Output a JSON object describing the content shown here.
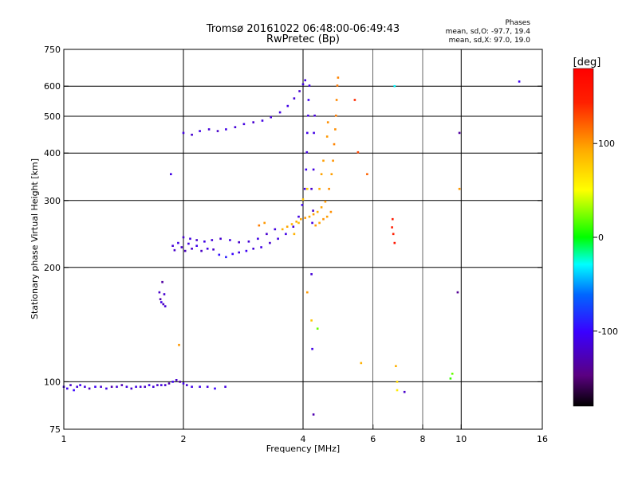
{
  "header": {
    "title_line1": "Tromsø 20161022 06:48:00-06:49:43",
    "title_line2": "RwPretec (Bp)",
    "phase_title": "Phases",
    "phase_o": "mean, sd,O:  -97.7,  19.4",
    "phase_x": "mean, sd,X:   97.0,  19.0"
  },
  "chart_data": {
    "type": "scatter",
    "xlabel": "Frequency [MHz]",
    "ylabel": "Stationary phase Virtual Height [km]",
    "xscale": "log",
    "yscale": "log",
    "xlim": [
      1,
      16
    ],
    "ylim": [
      75,
      750
    ],
    "x_ticks": [
      1,
      2,
      4,
      6,
      8,
      10,
      16
    ],
    "x_tick_labels": [
      "1",
      "2",
      "4",
      "6",
      "8",
      "10",
      "16"
    ],
    "x_major_grid": [
      2,
      4,
      10
    ],
    "x_minor_grid": [
      6,
      8
    ],
    "y_ticks": [
      75,
      100,
      200,
      300,
      400,
      500,
      600,
      750
    ],
    "y_tick_labels": [
      "75",
      "100",
      "200",
      "300",
      "400",
      "500",
      "600",
      "750"
    ],
    "y_grid": [
      100,
      200,
      300,
      400,
      500,
      600
    ],
    "grid": true,
    "colorbar": {
      "label": "[deg]",
      "min": -180,
      "max": 180,
      "ticks": [
        100,
        0,
        -100
      ],
      "tick_labels": [
        "100",
        "0",
        "-100"
      ]
    },
    "series": [
      {
        "mode": "O",
        "points": [
          [
            1.0,
            97,
            -110
          ],
          [
            1.02,
            96,
            -105
          ],
          [
            1.04,
            98,
            -120
          ],
          [
            1.06,
            95,
            -100
          ],
          [
            1.08,
            97,
            -115
          ],
          [
            1.1,
            98,
            -108
          ],
          [
            1.13,
            97,
            -112
          ],
          [
            1.16,
            96,
            -125
          ],
          [
            1.2,
            97,
            -104
          ],
          [
            1.24,
            97,
            -118
          ],
          [
            1.28,
            96,
            -110
          ],
          [
            1.32,
            97,
            -130
          ],
          [
            1.36,
            97,
            -115
          ],
          [
            1.4,
            98,
            -128
          ],
          [
            1.44,
            97,
            -112
          ],
          [
            1.48,
            96,
            -120
          ],
          [
            1.52,
            97,
            -110
          ],
          [
            1.56,
            97,
            -116
          ],
          [
            1.6,
            97,
            -122
          ],
          [
            1.64,
            98,
            -108
          ],
          [
            1.68,
            97,
            -115
          ],
          [
            1.72,
            98,
            -120
          ],
          [
            1.76,
            98,
            -112
          ],
          [
            1.8,
            98,
            -118
          ],
          [
            1.84,
            99,
            -130
          ],
          [
            1.88,
            100,
            -105
          ],
          [
            1.92,
            101,
            -120
          ],
          [
            1.96,
            100,
            -135
          ],
          [
            2.0,
            99,
            -110
          ],
          [
            2.04,
            98,
            -116
          ],
          [
            2.1,
            97,
            -110
          ],
          [
            2.2,
            97,
            -108
          ],
          [
            2.3,
            97,
            -112
          ],
          [
            2.4,
            96,
            -100
          ],
          [
            2.55,
            97,
            -112
          ],
          [
            1.74,
            172,
            -120
          ],
          [
            1.75,
            165,
            -130
          ],
          [
            1.76,
            162,
            -110
          ],
          [
            1.78,
            160,
            -125
          ],
          [
            1.8,
            158,
            -115
          ],
          [
            1.77,
            183,
            -135
          ],
          [
            1.79,
            170,
            -118
          ],
          [
            1.88,
            228,
            -115
          ],
          [
            1.9,
            222,
            -120
          ],
          [
            1.94,
            232,
            -110
          ],
          [
            1.98,
            226,
            -118
          ],
          [
            2.02,
            221,
            -125
          ],
          [
            2.06,
            231,
            -112
          ],
          [
            2.1,
            224,
            -120
          ],
          [
            2.16,
            228,
            -108
          ],
          [
            2.22,
            221,
            -122
          ],
          [
            2.3,
            224,
            -110
          ],
          [
            2.38,
            223,
            -120
          ],
          [
            2.46,
            216,
            -95
          ],
          [
            2.56,
            213,
            -90
          ],
          [
            2.66,
            217,
            -100
          ],
          [
            2.76,
            219,
            -112
          ],
          [
            2.88,
            221,
            -105
          ],
          [
            3.0,
            224,
            -115
          ],
          [
            3.14,
            226,
            -110
          ],
          [
            3.3,
            232,
            -118
          ],
          [
            3.46,
            238,
            -112
          ],
          [
            3.62,
            245,
            -110
          ],
          [
            3.78,
            256,
            -115
          ],
          [
            3.9,
            272,
            -112
          ],
          [
            3.98,
            292,
            -108
          ],
          [
            4.04,
            322,
            -110
          ],
          [
            4.07,
            362,
            -105
          ],
          [
            4.09,
            402,
            -112
          ],
          [
            4.1,
            452,
            -108
          ],
          [
            4.12,
            502,
            -110
          ],
          [
            4.13,
            552,
            -105
          ],
          [
            4.15,
            602,
            -110
          ],
          [
            2.0,
            240,
            -118
          ],
          [
            2.08,
            238,
            -112
          ],
          [
            2.16,
            236,
            -120
          ],
          [
            2.26,
            234,
            -110
          ],
          [
            2.36,
            236,
            -115
          ],
          [
            2.48,
            238,
            -118
          ],
          [
            2.62,
            236,
            -112
          ],
          [
            2.76,
            233,
            -120
          ],
          [
            2.92,
            234,
            -115
          ],
          [
            3.08,
            238,
            -110
          ],
          [
            3.24,
            245,
            -118
          ],
          [
            3.4,
            252,
            -112
          ],
          [
            2.0,
            452,
            -112
          ],
          [
            2.1,
            447,
            -118
          ],
          [
            2.2,
            457,
            -110
          ],
          [
            2.32,
            462,
            -115
          ],
          [
            2.44,
            457,
            -120
          ],
          [
            2.56,
            462,
            -110
          ],
          [
            2.7,
            468,
            -115
          ],
          [
            2.84,
            477,
            -112
          ],
          [
            3.0,
            482,
            -118
          ],
          [
            3.16,
            487,
            -110
          ],
          [
            3.32,
            497,
            -115
          ],
          [
            3.5,
            512,
            -112
          ],
          [
            3.66,
            532,
            -110
          ],
          [
            3.8,
            557,
            -115
          ],
          [
            3.92,
            582,
            -118
          ],
          [
            4.0,
            607,
            -112
          ],
          [
            4.05,
            622,
            -110
          ],
          [
            4.2,
            322,
            -118
          ],
          [
            4.25,
            362,
            -112
          ],
          [
            4.26,
            452,
            -110
          ],
          [
            4.28,
            502,
            -115
          ],
          [
            4.24,
            282,
            -120
          ],
          [
            4.22,
            262,
            -112
          ],
          [
            4.2,
            192,
            -115
          ],
          [
            4.22,
            122,
            -110
          ],
          [
            4.25,
            82,
            -130
          ],
          [
            7.2,
            94,
            -120
          ],
          [
            9.9,
            452,
            -135
          ],
          [
            9.8,
            172,
            -140
          ],
          [
            14.0,
            617,
            -105
          ],
          [
            1.86,
            352,
            -110
          ]
        ]
      },
      {
        "mode": "X",
        "points": [
          [
            3.55,
            252,
            90
          ],
          [
            3.65,
            256,
            95
          ],
          [
            3.75,
            260,
            88
          ],
          [
            3.85,
            264,
            92
          ],
          [
            3.95,
            268,
            96
          ],
          [
            4.05,
            270,
            100
          ],
          [
            4.15,
            272,
            94
          ],
          [
            4.25,
            276,
            98
          ],
          [
            4.35,
            280,
            92
          ],
          [
            4.45,
            288,
            96
          ],
          [
            4.55,
            298,
            100
          ],
          [
            4.65,
            322,
            104
          ],
          [
            4.72,
            352,
            98
          ],
          [
            4.76,
            382,
            102
          ],
          [
            4.79,
            422,
            108
          ],
          [
            4.82,
            462,
            104
          ],
          [
            4.84,
            502,
            110
          ],
          [
            4.86,
            552,
            106
          ],
          [
            4.88,
            602,
            112
          ],
          [
            4.9,
            632,
            108
          ],
          [
            4.3,
            258,
            100
          ],
          [
            4.4,
            262,
            96
          ],
          [
            4.5,
            268,
            102
          ],
          [
            4.6,
            272,
            98
          ],
          [
            4.7,
            280,
            104
          ],
          [
            4.4,
            322,
            92
          ],
          [
            4.45,
            352,
            96
          ],
          [
            4.5,
            382,
            98
          ],
          [
            4.6,
            442,
            100
          ],
          [
            4.62,
            482,
            104
          ],
          [
            4.0,
            302,
            80
          ],
          [
            4.1,
            322,
            75
          ],
          [
            3.9,
            262,
            85
          ],
          [
            3.8,
            245,
            90
          ],
          [
            3.2,
            262,
            100
          ],
          [
            3.1,
            258,
            110
          ],
          [
            4.1,
            172,
            100
          ],
          [
            4.2,
            145,
            80
          ],
          [
            4.35,
            138,
            20
          ],
          [
            5.6,
            112,
            90
          ],
          [
            5.4,
            552,
            140
          ],
          [
            5.5,
            402,
            130
          ],
          [
            5.8,
            352,
            120
          ],
          [
            6.7,
            255,
            150
          ],
          [
            6.75,
            245,
            145
          ],
          [
            6.8,
            232,
            155
          ],
          [
            6.72,
            268,
            150
          ],
          [
            6.85,
            110,
            90
          ],
          [
            6.9,
            100,
            70
          ],
          [
            6.9,
            95,
            60
          ],
          [
            9.5,
            105,
            20
          ],
          [
            9.4,
            102,
            10
          ],
          [
            9.9,
            322,
            100
          ],
          [
            6.8,
            600,
            -30
          ],
          [
            1.95,
            125,
            100
          ]
        ]
      }
    ]
  }
}
